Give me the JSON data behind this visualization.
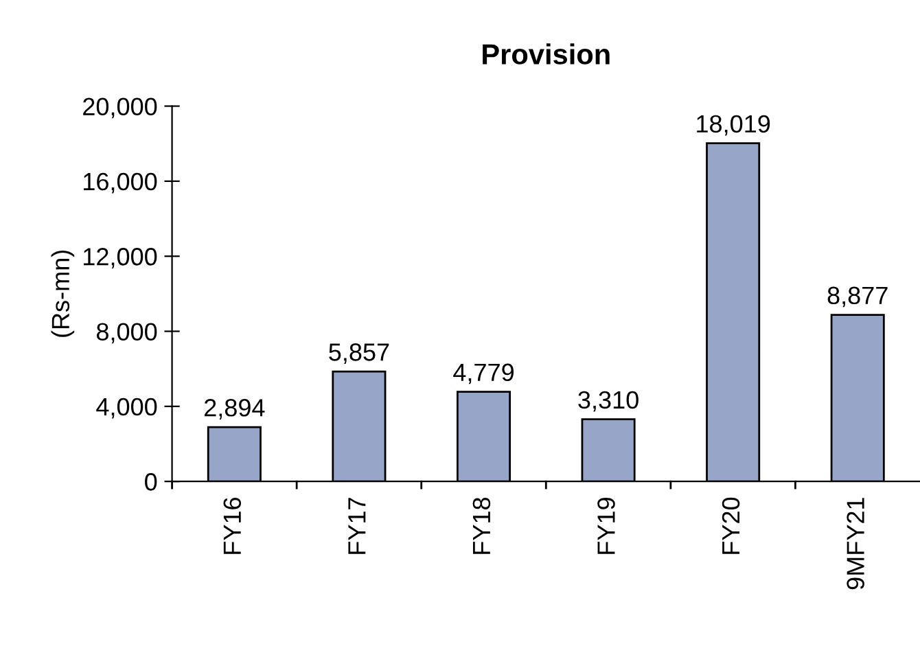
{
  "chart_data": {
    "type": "bar",
    "title": "Provision",
    "ylabel": "(Rs-mn)",
    "categories": [
      "FY16",
      "FY17",
      "FY18",
      "FY19",
      "FY20",
      "9MFY21"
    ],
    "values": [
      2894,
      5857,
      4779,
      3310,
      18019,
      8877
    ],
    "value_labels": [
      "2,894",
      "5,857",
      "4,779",
      "3,310",
      "18,019",
      "8,877"
    ],
    "color": "#96a5c8",
    "ylim": [
      0,
      20000
    ],
    "yticks": [
      {
        "value": 0,
        "label": "0"
      },
      {
        "value": 4000,
        "label": "4,000"
      },
      {
        "value": 8000,
        "label": "8,000"
      },
      {
        "value": 12000,
        "label": "12,000"
      },
      {
        "value": 16000,
        "label": "16,000"
      },
      {
        "value": 20000,
        "label": "20,000"
      }
    ],
    "grid": false,
    "legend": false
  }
}
